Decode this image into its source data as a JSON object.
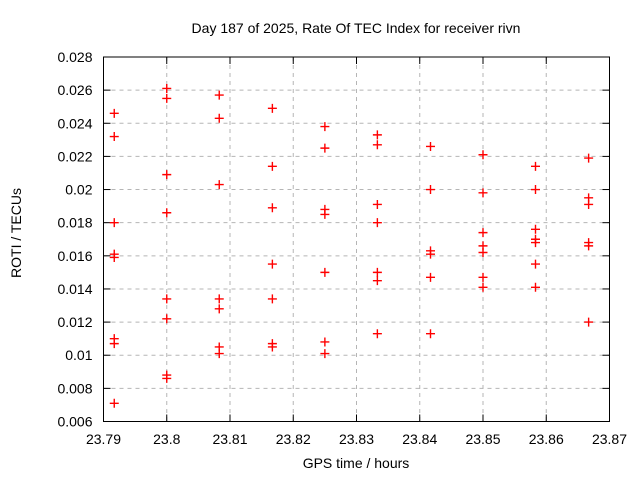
{
  "chart_data": {
    "type": "scatter",
    "title": "Day 187 of 2025, Rate Of TEC Index for receiver rivn",
    "xlabel": "GPS time / hours",
    "ylabel": "ROTI / TECUs",
    "xlim": [
      23.79,
      23.87
    ],
    "ylim": [
      0.006,
      0.028
    ],
    "grid": "dashed",
    "legend": "none",
    "x_tick_values": [
      23.79,
      23.8,
      23.81,
      23.82,
      23.83,
      23.84,
      23.85,
      23.86,
      23.87
    ],
    "x_tick_labels": [
      "23.79",
      "23.8",
      "23.81",
      "23.82",
      "23.83",
      "23.84",
      "23.85",
      "23.86",
      "23.87"
    ],
    "y_tick_values": [
      0.006,
      0.008,
      0.01,
      0.012,
      0.014,
      0.016,
      0.018,
      0.02,
      0.022,
      0.024,
      0.026,
      0.028
    ],
    "y_tick_labels": [
      "0.006",
      "0.008",
      "0.01",
      "0.012",
      "0.014",
      "0.016",
      "0.018",
      "0.02",
      "0.022",
      "0.024",
      "0.026",
      "0.028"
    ],
    "marker": {
      "shape": "plus",
      "color": "#ff0000",
      "size": 9
    },
    "grid_color": "#b5b5b5",
    "axis_color": "#000000",
    "points": [
      [
        23.7917,
        0.0246
      ],
      [
        23.7917,
        0.0232
      ],
      [
        23.7917,
        0.018
      ],
      [
        23.7917,
        0.0161
      ],
      [
        23.7917,
        0.0159
      ],
      [
        23.7917,
        0.011
      ],
      [
        23.7917,
        0.0107
      ],
      [
        23.7917,
        0.0071
      ],
      [
        23.8,
        0.0261
      ],
      [
        23.8,
        0.0255
      ],
      [
        23.8,
        0.0209
      ],
      [
        23.8,
        0.0186
      ],
      [
        23.8,
        0.0134
      ],
      [
        23.8,
        0.0122
      ],
      [
        23.8,
        0.0088
      ],
      [
        23.8,
        0.0086
      ],
      [
        23.8083,
        0.0257
      ],
      [
        23.8083,
        0.0243
      ],
      [
        23.8083,
        0.0203
      ],
      [
        23.8083,
        0.0134
      ],
      [
        23.8083,
        0.0128
      ],
      [
        23.8083,
        0.0105
      ],
      [
        23.8083,
        0.0101
      ],
      [
        23.8167,
        0.0249
      ],
      [
        23.8167,
        0.0214
      ],
      [
        23.8167,
        0.0189
      ],
      [
        23.8167,
        0.0155
      ],
      [
        23.8167,
        0.0134
      ],
      [
        23.8167,
        0.0107
      ],
      [
        23.8167,
        0.0105
      ],
      [
        23.825,
        0.0238
      ],
      [
        23.825,
        0.0225
      ],
      [
        23.825,
        0.0188
      ],
      [
        23.825,
        0.0185
      ],
      [
        23.825,
        0.015
      ],
      [
        23.825,
        0.0108
      ],
      [
        23.825,
        0.0101
      ],
      [
        23.8333,
        0.0233
      ],
      [
        23.8333,
        0.0227
      ],
      [
        23.8333,
        0.0191
      ],
      [
        23.8333,
        0.018
      ],
      [
        23.8333,
        0.015
      ],
      [
        23.8333,
        0.0145
      ],
      [
        23.8333,
        0.0113
      ],
      [
        23.8417,
        0.0226
      ],
      [
        23.8417,
        0.02
      ],
      [
        23.8417,
        0.0163
      ],
      [
        23.8417,
        0.0161
      ],
      [
        23.8417,
        0.0147
      ],
      [
        23.8417,
        0.0113
      ],
      [
        23.85,
        0.0221
      ],
      [
        23.85,
        0.0198
      ],
      [
        23.85,
        0.0174
      ],
      [
        23.85,
        0.0166
      ],
      [
        23.85,
        0.0162
      ],
      [
        23.85,
        0.0147
      ],
      [
        23.85,
        0.0141
      ],
      [
        23.8583,
        0.0214
      ],
      [
        23.8583,
        0.02
      ],
      [
        23.8583,
        0.0176
      ],
      [
        23.8583,
        0.017
      ],
      [
        23.8583,
        0.0168
      ],
      [
        23.8583,
        0.0155
      ],
      [
        23.8583,
        0.0141
      ],
      [
        23.8667,
        0.0219
      ],
      [
        23.8667,
        0.0195
      ],
      [
        23.8667,
        0.0191
      ],
      [
        23.8667,
        0.0168
      ],
      [
        23.8667,
        0.0166
      ],
      [
        23.8667,
        0.012
      ]
    ]
  }
}
